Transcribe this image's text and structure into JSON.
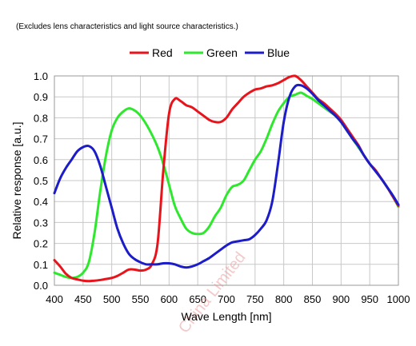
{
  "chart_data": {
    "type": "line",
    "note": "(Excludes lens characteristics and light source characteristics.)",
    "xlabel": "Wave Length [nm]",
    "ylabel": "Relative response [a.u.]",
    "xlim": [
      400,
      1000
    ],
    "ylim": [
      0,
      1.0
    ],
    "x_ticks": [
      "400",
      "450",
      "500",
      "550",
      "600",
      "650",
      "700",
      "750",
      "800",
      "850",
      "900",
      "950",
      "1000"
    ],
    "y_ticks": [
      "0.0",
      "0.1",
      "0.2",
      "0.3",
      "0.4",
      "0.5",
      "0.6",
      "0.7",
      "0.8",
      "0.9",
      "1.0"
    ],
    "grid": true,
    "legend_position": "top-center",
    "watermark": "China Limited",
    "series": [
      {
        "name": "Red",
        "color": "#e8141c",
        "x": [
          400,
          410,
          420,
          430,
          440,
          450,
          460,
          470,
          480,
          490,
          500,
          510,
          520,
          530,
          540,
          550,
          560,
          570,
          580,
          590,
          600,
          610,
          620,
          630,
          640,
          650,
          660,
          670,
          680,
          690,
          700,
          710,
          720,
          730,
          740,
          750,
          760,
          770,
          780,
          790,
          800,
          810,
          820,
          830,
          840,
          850,
          860,
          870,
          880,
          890,
          900,
          910,
          920,
          930,
          940,
          950,
          960,
          970,
          980,
          990,
          1000
        ],
        "y": [
          0.12,
          0.09,
          0.055,
          0.035,
          0.028,
          0.022,
          0.02,
          0.022,
          0.025,
          0.03,
          0.035,
          0.045,
          0.06,
          0.075,
          0.075,
          0.07,
          0.075,
          0.1,
          0.2,
          0.55,
          0.82,
          0.89,
          0.88,
          0.86,
          0.85,
          0.83,
          0.81,
          0.79,
          0.78,
          0.78,
          0.8,
          0.84,
          0.87,
          0.9,
          0.92,
          0.935,
          0.94,
          0.95,
          0.955,
          0.965,
          0.98,
          0.995,
          1.0,
          0.98,
          0.95,
          0.92,
          0.89,
          0.87,
          0.845,
          0.82,
          0.79,
          0.75,
          0.71,
          0.67,
          0.62,
          0.58,
          0.55,
          0.51,
          0.47,
          0.425,
          0.38
        ]
      },
      {
        "name": "Green",
        "color": "#2ee82e",
        "x": [
          400,
          410,
          420,
          430,
          440,
          450,
          460,
          470,
          480,
          490,
          500,
          510,
          520,
          530,
          540,
          550,
          560,
          570,
          580,
          590,
          600,
          610,
          620,
          630,
          640,
          650,
          660,
          670,
          680,
          690,
          700,
          710,
          720,
          730,
          740,
          750,
          760,
          770,
          780,
          790,
          800,
          810,
          820,
          830,
          840,
          850,
          860,
          870,
          880,
          890,
          900,
          910,
          920,
          930,
          940,
          950,
          960,
          970,
          980,
          990,
          1000
        ],
        "y": [
          0.06,
          0.05,
          0.04,
          0.035,
          0.04,
          0.06,
          0.11,
          0.25,
          0.45,
          0.62,
          0.74,
          0.8,
          0.83,
          0.845,
          0.835,
          0.81,
          0.77,
          0.72,
          0.66,
          0.58,
          0.48,
          0.38,
          0.32,
          0.27,
          0.25,
          0.245,
          0.25,
          0.28,
          0.33,
          0.37,
          0.43,
          0.47,
          0.48,
          0.5,
          0.55,
          0.6,
          0.64,
          0.7,
          0.77,
          0.83,
          0.87,
          0.9,
          0.91,
          0.92,
          0.905,
          0.89,
          0.87,
          0.85,
          0.83,
          0.81,
          0.78,
          0.74,
          0.7,
          0.66,
          0.62,
          0.58,
          0.55,
          0.51,
          0.47,
          0.425,
          0.375
        ]
      },
      {
        "name": "Blue",
        "color": "#1c1cc8",
        "x": [
          400,
          410,
          420,
          430,
          440,
          450,
          460,
          470,
          480,
          490,
          500,
          510,
          520,
          530,
          540,
          550,
          560,
          570,
          580,
          590,
          600,
          610,
          620,
          630,
          640,
          650,
          660,
          670,
          680,
          690,
          700,
          710,
          720,
          730,
          740,
          750,
          760,
          770,
          780,
          790,
          800,
          810,
          820,
          830,
          840,
          850,
          860,
          870,
          880,
          890,
          900,
          910,
          920,
          930,
          940,
          950,
          960,
          970,
          980,
          990,
          1000
        ],
        "y": [
          0.44,
          0.51,
          0.56,
          0.6,
          0.64,
          0.66,
          0.665,
          0.64,
          0.57,
          0.47,
          0.37,
          0.27,
          0.2,
          0.15,
          0.125,
          0.11,
          0.1,
          0.1,
          0.1,
          0.105,
          0.105,
          0.1,
          0.09,
          0.085,
          0.09,
          0.1,
          0.115,
          0.13,
          0.15,
          0.17,
          0.19,
          0.205,
          0.21,
          0.215,
          0.22,
          0.24,
          0.27,
          0.31,
          0.4,
          0.58,
          0.78,
          0.9,
          0.95,
          0.955,
          0.94,
          0.915,
          0.885,
          0.86,
          0.835,
          0.81,
          0.78,
          0.74,
          0.7,
          0.665,
          0.62,
          0.58,
          0.545,
          0.51,
          0.47,
          0.43,
          0.385
        ]
      }
    ]
  }
}
